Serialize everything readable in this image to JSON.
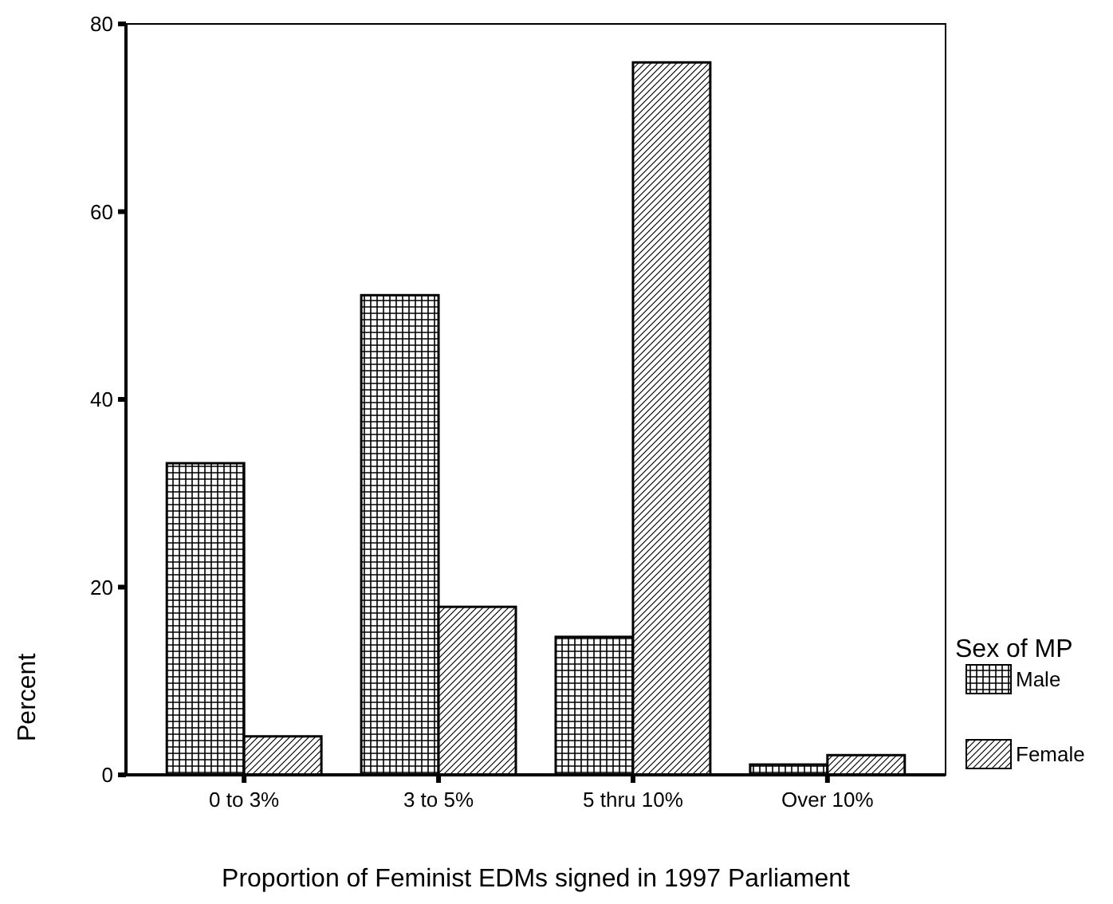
{
  "chart_data": {
    "type": "bar",
    "xlabel": "Proportion of Feminist EDMs signed in 1997 Parliament",
    "ylabel": "Percent",
    "legend_title": "Sex of MP",
    "categories": [
      "0 to 3%",
      "3 to 5%",
      "5 thru 10%",
      "Over 10%"
    ],
    "series": [
      {
        "name": "Male",
        "color": "#000000",
        "values": [
          33.2,
          51.1,
          14.7,
          1.1
        ]
      },
      {
        "name": "Female",
        "color": "#000000",
        "values": [
          4.1,
          17.9,
          75.9,
          2.1
        ]
      }
    ],
    "ylim": [
      0,
      80
    ],
    "yticks": [
      0,
      20,
      40,
      60,
      80
    ],
    "grid": false,
    "legend": "right"
  }
}
